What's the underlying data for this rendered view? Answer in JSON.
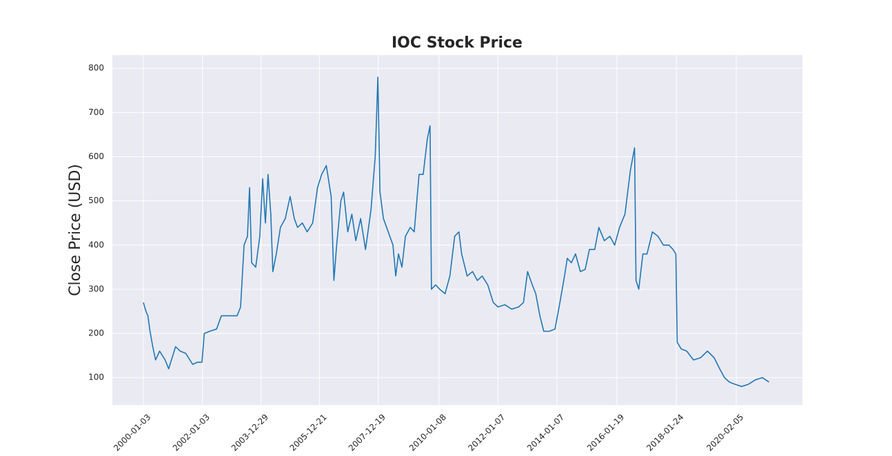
{
  "chart_data": {
    "type": "line",
    "title": "IOC Stock Price",
    "y_label": "Close Price (USD)",
    "grid": true,
    "xlim": [
      "1998-12-15",
      "2022-05-03"
    ],
    "xticks": [
      "2000-01-03",
      "2002-01-03",
      "2003-12-29",
      "2005-12-21",
      "2007-12-19",
      "2010-01-08",
      "2012-01-07",
      "2014-01-07",
      "2016-01-19",
      "2018-01-24",
      "2020-02-05"
    ],
    "ylim": [
      38,
      830
    ],
    "yticks": [
      100,
      200,
      300,
      400,
      500,
      600,
      700,
      800
    ],
    "x": [
      "2000-01-03",
      "2000-02-04",
      "2000-02-28",
      "2000-03-25",
      "2000-04-28",
      "2000-06-02",
      "2000-07-22",
      "2000-09-28",
      "2000-11-11",
      "2001-02-04",
      "2001-04-03",
      "2001-06-10",
      "2001-09-04",
      "2001-11-03",
      "2001-12-28",
      "2002-01-26",
      "2002-04-03",
      "2002-06-27",
      "2002-08-25",
      "2002-11-03",
      "2003-03-08",
      "2003-04-20",
      "2003-06-02",
      "2003-07-14",
      "2003-08-09",
      "2003-09-04",
      "2003-10-24",
      "2003-12-14",
      "2004-01-18",
      "2004-02-21",
      "2004-03-25",
      "2004-04-28",
      "2004-05-23",
      "2004-07-05",
      "2004-08-25",
      "2004-10-24",
      "2004-12-23",
      "2005-02-13",
      "2005-03-25",
      "2005-05-23",
      "2005-07-22",
      "2005-09-28",
      "2005-11-27",
      "2006-01-18",
      "2006-03-16",
      "2006-05-15",
      "2006-06-18",
      "2006-07-22",
      "2006-09-12",
      "2006-10-16",
      "2006-12-06",
      "2007-01-26",
      "2007-03-16",
      "2007-05-15",
      "2007-07-14",
      "2007-09-20",
      "2007-11-11",
      "2007-12-14",
      "2008-01-09",
      "2008-02-21",
      "2008-04-20",
      "2008-06-18",
      "2008-07-22",
      "2008-08-25",
      "2008-10-07",
      "2008-11-19",
      "2009-01-18",
      "2009-03-08",
      "2009-05-07",
      "2009-06-27",
      "2009-08-17",
      "2009-09-20",
      "2009-10-07",
      "2009-11-27",
      "2010-01-18",
      "2010-03-25",
      "2010-05-23",
      "2010-07-22",
      "2010-09-12",
      "2010-10-16",
      "2010-12-23",
      "2011-02-28",
      "2011-04-28",
      "2011-06-27",
      "2011-09-04",
      "2011-11-11",
      "2012-01-09",
      "2012-04-03",
      "2012-06-27",
      "2012-09-20",
      "2012-11-19",
      "2013-01-09",
      "2013-03-08",
      "2013-04-20",
      "2013-06-10",
      "2013-07-28",
      "2013-10-07",
      "2013-12-14",
      "2014-02-13",
      "2014-04-11",
      "2014-05-15",
      "2014-07-05",
      "2014-08-25",
      "2014-10-24",
      "2014-12-23",
      "2015-02-13",
      "2015-04-20",
      "2015-06-10",
      "2015-08-17",
      "2015-10-24",
      "2015-12-23",
      "2016-02-21",
      "2016-04-28",
      "2016-07-05",
      "2016-08-25",
      "2016-09-12",
      "2016-10-16",
      "2016-12-06",
      "2017-01-26",
      "2017-04-03",
      "2017-06-10",
      "2017-08-17",
      "2017-10-24",
      "2017-12-14",
      "2018-01-18",
      "2018-02-04",
      "2018-03-25",
      "2018-06-02",
      "2018-08-25",
      "2018-11-19",
      "2019-02-13",
      "2019-05-07",
      "2019-07-14",
      "2019-09-12",
      "2019-11-11",
      "2020-01-20",
      "2020-04-11",
      "2020-07-05",
      "2020-09-28",
      "2020-12-23",
      "2021-03-16"
    ],
    "series": [
      {
        "color": "#1f77b4",
        "values": [
          270,
          250,
          240,
          205,
          170,
          140,
          160,
          140,
          120,
          170,
          160,
          155,
          130,
          135,
          135,
          200,
          205,
          210,
          240,
          240,
          240,
          260,
          400,
          420,
          530,
          360,
          350,
          420,
          550,
          450,
          560,
          470,
          340,
          380,
          440,
          460,
          510,
          460,
          440,
          450,
          430,
          450,
          530,
          560,
          580,
          510,
          320,
          400,
          500,
          520,
          430,
          470,
          410,
          460,
          390,
          480,
          600,
          780,
          520,
          460,
          430,
          400,
          330,
          380,
          350,
          420,
          440,
          430,
          560,
          560,
          640,
          670,
          300,
          310,
          300,
          290,
          330,
          420,
          430,
          380,
          330,
          340,
          320,
          330,
          310,
          270,
          260,
          265,
          255,
          260,
          270,
          340,
          310,
          290,
          240,
          205,
          205,
          210,
          270,
          330,
          370,
          360,
          380,
          340,
          345,
          390,
          390,
          440,
          410,
          420,
          400,
          440,
          470,
          570,
          620,
          320,
          300,
          380,
          380,
          430,
          420,
          400,
          400,
          390,
          380,
          180,
          165,
          160,
          140,
          145,
          160,
          145,
          120,
          100,
          90,
          85,
          80,
          85,
          95,
          100,
          90
        ]
      }
    ]
  }
}
